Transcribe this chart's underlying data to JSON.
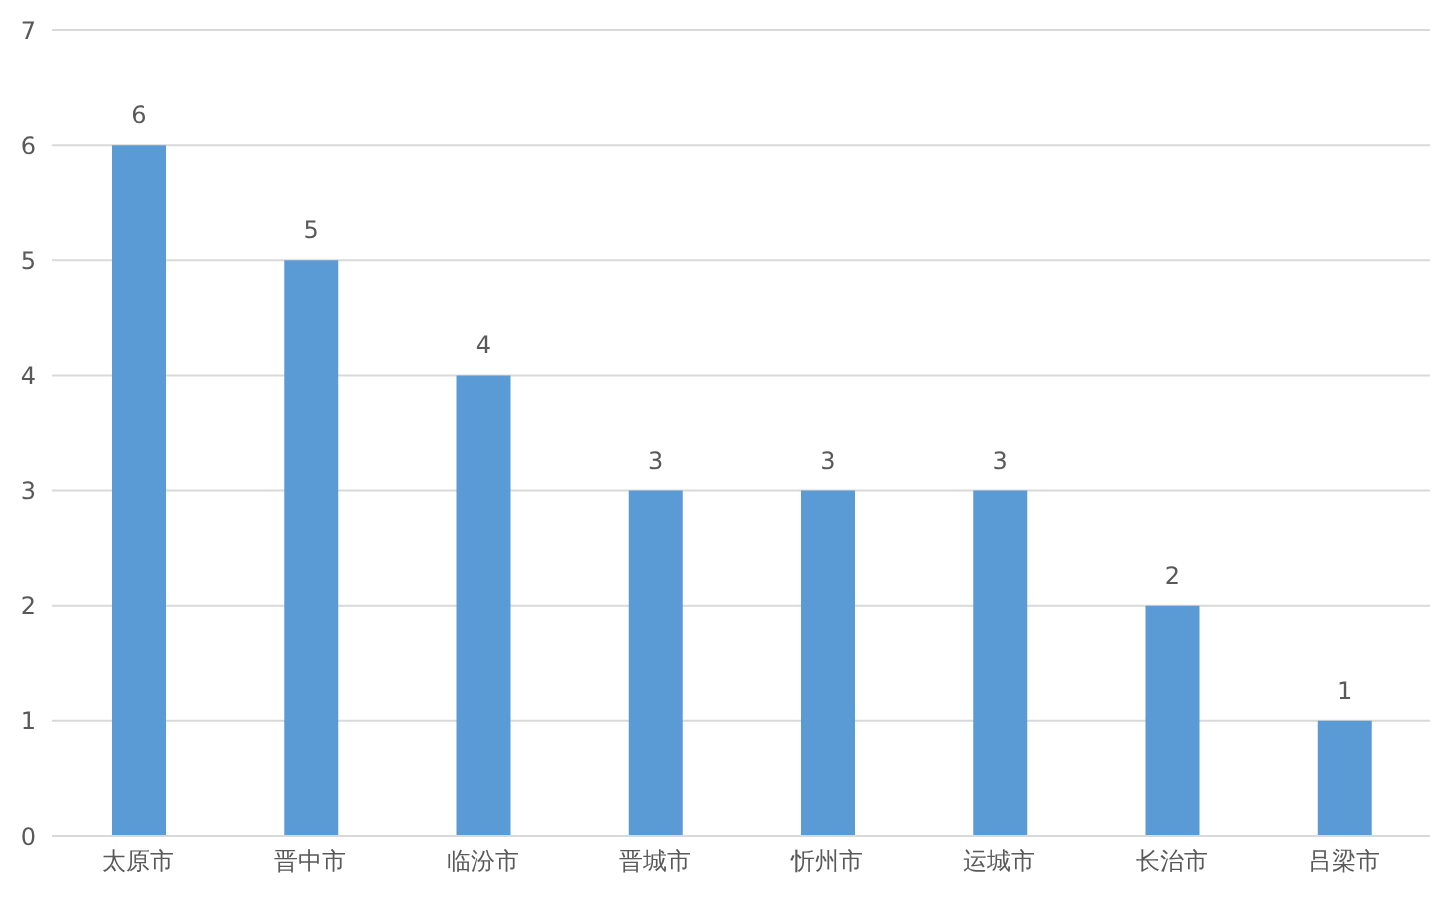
{
  "chart_data": {
    "type": "bar",
    "categories": [
      "太原市",
      "晋中市",
      "临汾市",
      "晋城市",
      "忻州市",
      "运城市",
      "长治市",
      "吕梁市"
    ],
    "values": [
      6,
      5,
      4,
      3,
      3,
      3,
      2,
      1
    ],
    "color": "#5b9bd5",
    "ylim": [
      0,
      7
    ],
    "yticks": [
      0,
      1,
      2,
      3,
      4,
      5,
      6,
      7
    ],
    "grid": "y",
    "data_labels": true
  }
}
